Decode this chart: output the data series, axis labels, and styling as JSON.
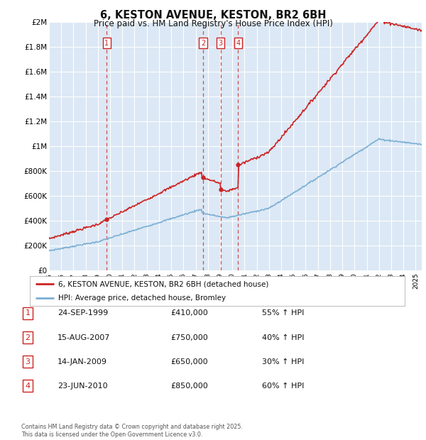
{
  "title": "6, KESTON AVENUE, KESTON, BR2 6BH",
  "subtitle": "Price paid vs. HM Land Registry's House Price Index (HPI)",
  "background_color": "#ffffff",
  "plot_bg_color": "#dce8f5",
  "grid_color": "#ffffff",
  "ylim": [
    0,
    2000000
  ],
  "yticks": [
    0,
    200000,
    400000,
    600000,
    800000,
    1000000,
    1200000,
    1400000,
    1600000,
    1800000,
    2000000
  ],
  "ytick_labels": [
    "£0",
    "£200K",
    "£400K",
    "£600K",
    "£800K",
    "£1M",
    "£1.2M",
    "£1.4M",
    "£1.6M",
    "£1.8M",
    "£2M"
  ],
  "hpi_color": "#7bafd4",
  "sale_color": "#cc2222",
  "dashed_line_color": "#cc3333",
  "transactions": [
    {
      "label": "1",
      "date_x": 1999.73,
      "price": 410000
    },
    {
      "label": "2",
      "date_x": 2007.62,
      "price": 750000
    },
    {
      "label": "3",
      "date_x": 2009.04,
      "price": 650000
    },
    {
      "label": "4",
      "date_x": 2010.48,
      "price": 850000
    }
  ],
  "legend_line1": "6, KESTON AVENUE, KESTON, BR2 6BH (detached house)",
  "legend_line2": "HPI: Average price, detached house, Bromley",
  "table_rows": [
    {
      "num": "1",
      "date": "24-SEP-1999",
      "price": "£410,000",
      "pct": "55% ↑ HPI"
    },
    {
      "num": "2",
      "date": "15-AUG-2007",
      "price": "£750,000",
      "pct": "40% ↑ HPI"
    },
    {
      "num": "3",
      "date": "14-JAN-2009",
      "price": "£650,000",
      "pct": "30% ↑ HPI"
    },
    {
      "num": "4",
      "date": "23-JUN-2010",
      "price": "£850,000",
      "pct": "60% ↑ HPI"
    }
  ],
  "footer": "Contains HM Land Registry data © Crown copyright and database right 2025.\nThis data is licensed under the Open Government Licence v3.0.",
  "xmin": 1995.0,
  "xmax": 2025.5
}
